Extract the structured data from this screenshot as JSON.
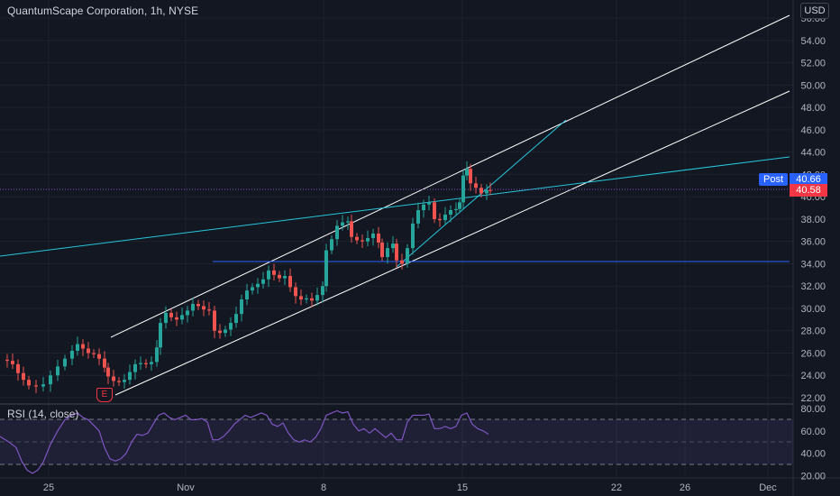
{
  "header": {
    "symbol_title": "QuantumScape Corporation, 1h, NYSE"
  },
  "price_axis": {
    "currency": "USD",
    "ticks": [
      "56.00",
      "54.00",
      "52.00",
      "50.00",
      "48.00",
      "46.00",
      "44.00",
      "42.00",
      "40.00",
      "38.00",
      "36.00",
      "34.00",
      "32.00",
      "30.00",
      "28.00",
      "26.00",
      "24.00",
      "22.00"
    ],
    "post_label": "Post",
    "post_price": "40.66",
    "last_price": "40.58"
  },
  "rsi": {
    "label": "RSI (14, close)",
    "ticks": [
      "80.00",
      "60.00",
      "40.00",
      "20.00"
    ]
  },
  "time_axis": {
    "ticks": [
      "25",
      "Nov",
      "8",
      "15",
      "22",
      "26",
      "Dec"
    ]
  },
  "earnings_marker": "E",
  "colors": {
    "background": "#131722",
    "up": "#26a69a",
    "down": "#ef5350",
    "trendline": "#ffffff",
    "cyan_line": "#26c6da",
    "blue_line": "#2962ff",
    "rsi_line": "#7e57c2",
    "post_badge": "#2962ff",
    "last_badge": "#f23645"
  }
}
